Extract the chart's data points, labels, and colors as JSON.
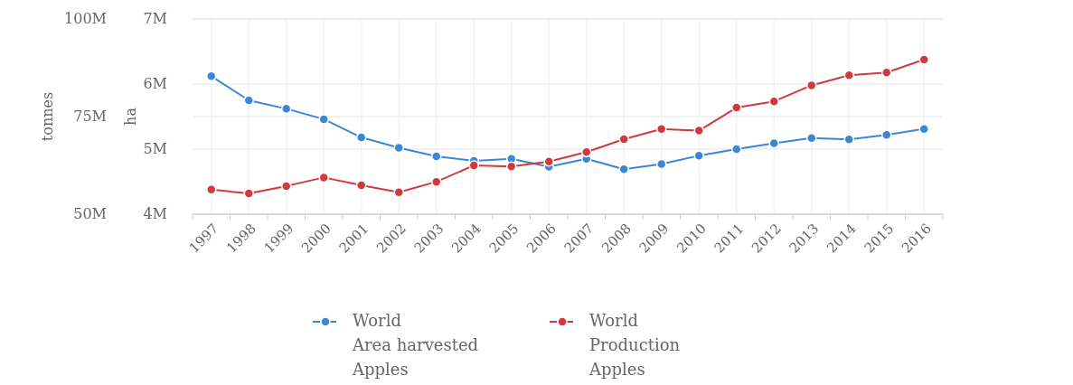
{
  "chart_data": {
    "type": "line",
    "categories": [
      "1997",
      "1998",
      "1999",
      "2000",
      "2001",
      "2002",
      "2003",
      "2004",
      "2005",
      "2006",
      "2007",
      "2008",
      "2009",
      "2010",
      "2011",
      "2012",
      "2013",
      "2014",
      "2015",
      "2016"
    ],
    "ylabel": "ha",
    "y2label": "tonnes",
    "ylim": [
      4000000,
      7000000
    ],
    "yticks": [
      {
        "value": 4000000,
        "label": "4M"
      },
      {
        "value": 5000000,
        "label": "5M"
      },
      {
        "value": 6000000,
        "label": "6M"
      },
      {
        "value": 7000000,
        "label": "7M"
      }
    ],
    "y2lim": [
      50000000,
      100000000
    ],
    "y2ticks": [
      {
        "value": 50000000,
        "label": "50M"
      },
      {
        "value": 75000000,
        "label": "75M"
      },
      {
        "value": 100000000,
        "label": "100M"
      }
    ],
    "series": [
      {
        "name": "World\nArea harvested\nApples",
        "color": "#3a87d4",
        "values": [
          6120000,
          5750000,
          5620000,
          5460000,
          5180000,
          5020000,
          4890000,
          4820000,
          4850000,
          4730000,
          4850000,
          4690000,
          4770000,
          4900000,
          5000000,
          5090000,
          5170000,
          5150000,
          5220000,
          5310000
        ]
      },
      {
        "name": "World\nProduction\nApples",
        "color": "#d0393f",
        "axis": "y2",
        "values": [
          56300000,
          55300000,
          57200000,
          59400000,
          57400000,
          55600000,
          58300000,
          62500000,
          62200000,
          63500000,
          65900000,
          69200000,
          71800000,
          71400000,
          77300000,
          78900000,
          83000000,
          85600000,
          86300000,
          89600000
        ]
      }
    ],
    "grid": true,
    "legend": "bottom",
    "marker": "circle",
    "line_style": "solid"
  }
}
